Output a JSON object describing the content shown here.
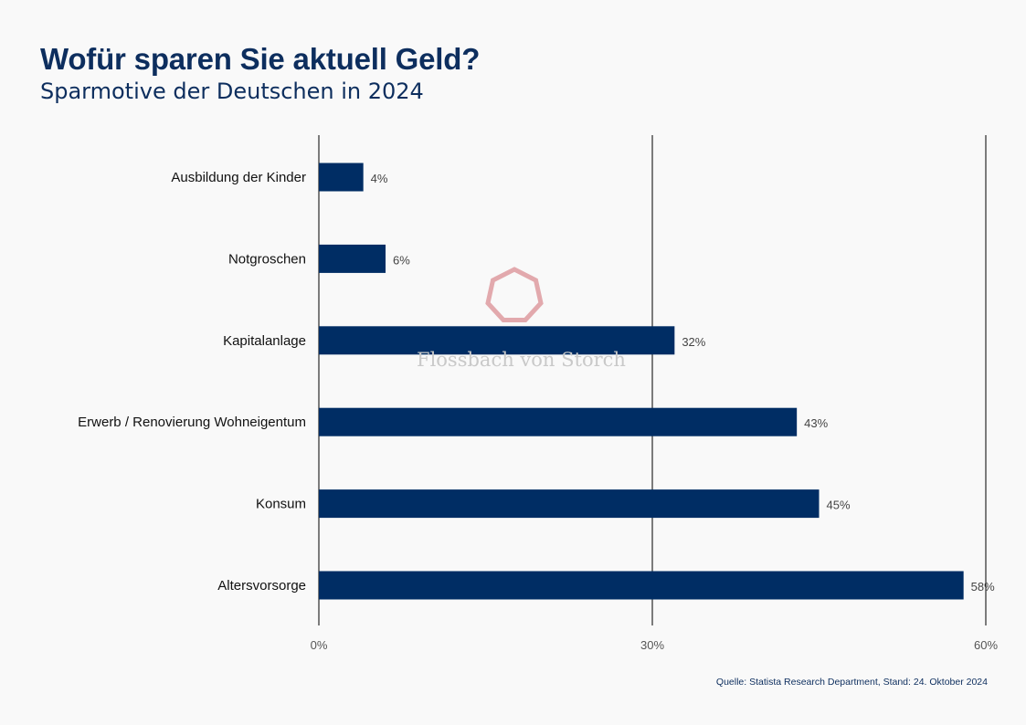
{
  "header": {
    "title": "Wofür sparen Sie aktuell Geld?",
    "subtitle": "Sparmotive der Deutschen in 2024"
  },
  "chart_data": {
    "type": "bar",
    "orientation": "horizontal",
    "title": "Wofür sparen Sie aktuell Geld?",
    "subtitle": "Sparmotive der Deutschen in 2024",
    "categories": [
      "Ausbildung der Kinder",
      "Notgroschen",
      "Kapitalanlage",
      "Erwerb / Renovierung Wohneigentum",
      "Konsum",
      "Altersvorsorge"
    ],
    "values": [
      4,
      6,
      32,
      43,
      45,
      58
    ],
    "value_labels": [
      "4%",
      "6%",
      "32%",
      "43%",
      "45%",
      "58%"
    ],
    "xlim": [
      0,
      60
    ],
    "xticks": [
      0,
      30,
      60
    ],
    "xtick_labels": [
      "0%",
      "30%",
      "60%"
    ],
    "xlabel": "",
    "ylabel": "",
    "grid": true,
    "bar_color": "#002d64"
  },
  "watermark": {
    "text": "Flossbach von Storch",
    "color": "#e2a9ad"
  },
  "footer": {
    "source": "Quelle: Statista Research Department,  Stand: 24. Oktober 2024"
  }
}
